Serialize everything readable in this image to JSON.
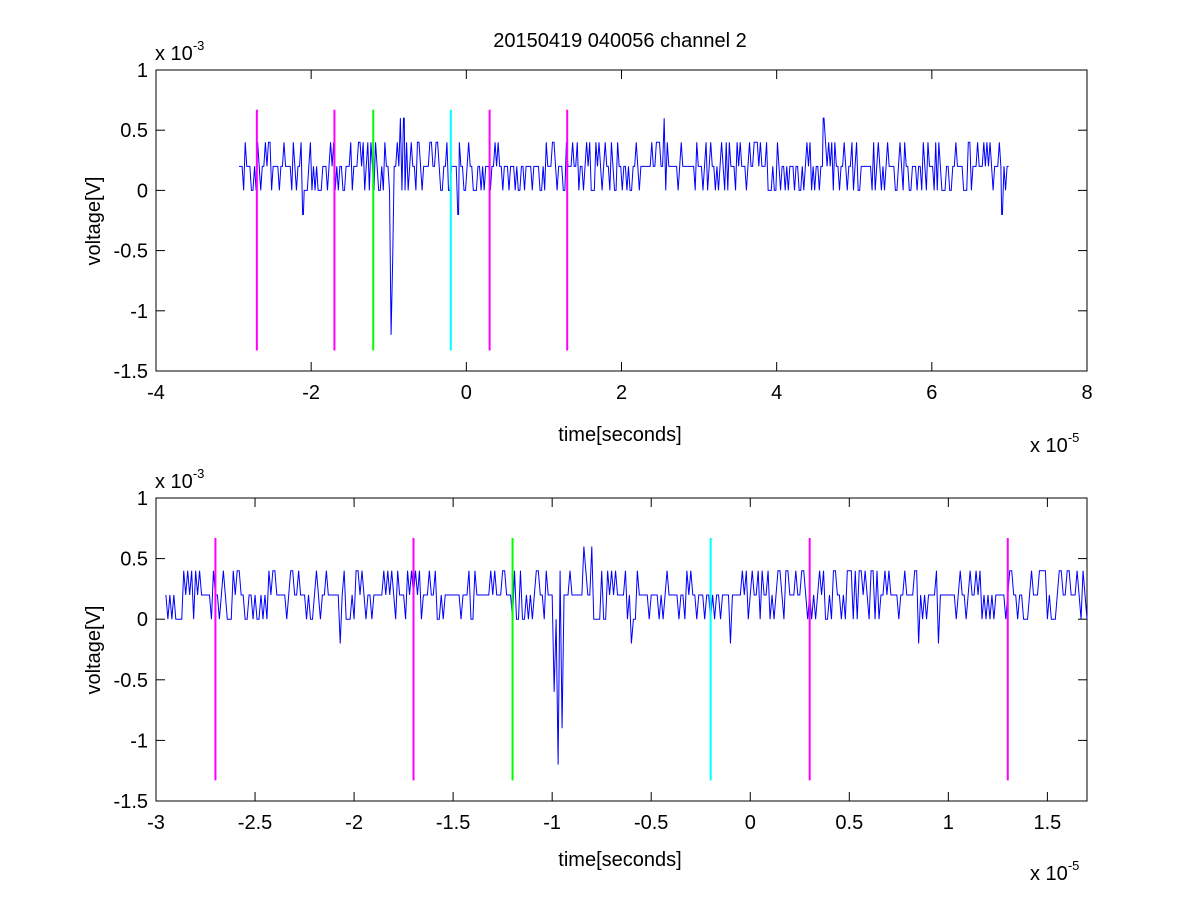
{
  "title": "20150419 040056 channel 2",
  "colors": {
    "signal": "#0000ff",
    "marker_magenta": "#ff00ff",
    "marker_green": "#00ff00",
    "marker_cyan": "#00ffff",
    "axes": "#000000",
    "background": "#ffffff"
  },
  "chart_data": [
    {
      "type": "line",
      "title": "20150419 040056 channel 2",
      "xlabel": "time[seconds]",
      "ylabel": "voltage[V]",
      "x_exponent_label": "x 10",
      "x_exponent": "-5",
      "y_exponent_label": "x 10",
      "y_exponent": "-3",
      "xlim": [
        -4,
        8
      ],
      "ylim": [
        -1.5,
        1
      ],
      "x_ticks": [
        -4,
        -2,
        0,
        2,
        4,
        6,
        8
      ],
      "x_tick_labels": [
        "-4",
        "-2",
        "0",
        "2",
        "4",
        "6",
        "8"
      ],
      "y_ticks": [
        -1.5,
        -1,
        -0.5,
        0,
        0.5,
        1
      ],
      "y_tick_labels": [
        "-1.5",
        "-1",
        "-0.5",
        "0",
        "0.5",
        "1"
      ],
      "grid": false,
      "markers": [
        {
          "x": -2.7,
          "color": "#ff00ff",
          "y": [
            -1.33,
            0.67
          ]
        },
        {
          "x": -1.7,
          "color": "#ff00ff",
          "y": [
            -1.33,
            0.67
          ]
        },
        {
          "x": -1.2,
          "color": "#00ff00",
          "y": [
            -1.33,
            0.67
          ]
        },
        {
          "x": -0.2,
          "color": "#00ffff",
          "y": [
            -1.33,
            0.67
          ]
        },
        {
          "x": 0.3,
          "color": "#ff00ff",
          "y": [
            -1.33,
            0.67
          ]
        },
        {
          "x": 1.3,
          "color": "#ff00ff",
          "y": [
            -1.33,
            0.67
          ]
        }
      ],
      "series": [
        {
          "x_range": [
            -2.93,
            7.0
          ],
          "step": 0.02,
          "baseline": 0.2,
          "levels": [
            0,
            0.2,
            0.4
          ],
          "features": [
            {
              "x": -2.1,
              "y": -0.2
            },
            {
              "x": -0.97,
              "y": -1.2
            },
            {
              "x": -0.85,
              "y": 0.6
            },
            {
              "x": -0.8,
              "y": 0.6
            },
            {
              "x": -0.95,
              "y": -0.6
            },
            {
              "x": -0.1,
              "y": -0.2
            },
            {
              "x": 2.55,
              "y": 0.6
            },
            {
              "x": 4.6,
              "y": 0.6
            },
            {
              "x": 6.9,
              "y": -0.2
            }
          ]
        }
      ]
    },
    {
      "type": "line",
      "xlabel": "time[seconds]",
      "ylabel": "voltage[V]",
      "x_exponent_label": "x 10",
      "x_exponent": "-5",
      "y_exponent_label": "x 10",
      "y_exponent": "-3",
      "xlim": [
        -3.0,
        1.7
      ],
      "ylim": [
        -1.5,
        1
      ],
      "x_ticks": [
        -3,
        -2.5,
        -2,
        -1.5,
        -1,
        -0.5,
        0,
        0.5,
        1,
        1.5
      ],
      "x_tick_labels": [
        "-3",
        "-2.5",
        "-2",
        "-1.5",
        "-1",
        "-0.5",
        "0",
        "0.5",
        "1",
        "1.5"
      ],
      "y_ticks": [
        -1.5,
        -1,
        -0.5,
        0,
        0.5,
        1
      ],
      "y_tick_labels": [
        "-1.5",
        "-1",
        "-0.5",
        "0",
        "0.5",
        "1"
      ],
      "grid": false,
      "markers": [
        {
          "x": -2.7,
          "color": "#ff00ff",
          "y": [
            -1.33,
            0.67
          ]
        },
        {
          "x": -1.7,
          "color": "#ff00ff",
          "y": [
            -1.33,
            0.67
          ]
        },
        {
          "x": -1.2,
          "color": "#00ff00",
          "y": [
            -1.33,
            0.67
          ]
        },
        {
          "x": -0.2,
          "color": "#00ffff",
          "y": [
            -1.33,
            0.67
          ]
        },
        {
          "x": 0.3,
          "color": "#ff00ff",
          "y": [
            -1.33,
            0.67
          ]
        },
        {
          "x": 1.3,
          "color": "#ff00ff",
          "y": [
            -1.33,
            0.67
          ]
        }
      ],
      "series": [
        {
          "x_range": [
            -2.95,
            1.7
          ],
          "step": 0.01,
          "baseline": 0.2,
          "levels": [
            0,
            0.2,
            0.4
          ],
          "features": [
            {
              "x": -2.07,
              "y": -0.2
            },
            {
              "x": -0.97,
              "y": -1.2
            },
            {
              "x": -0.95,
              "y": -0.9
            },
            {
              "x": -0.99,
              "y": -0.6
            },
            {
              "x": -0.84,
              "y": 0.6
            },
            {
              "x": -0.8,
              "y": 0.6
            },
            {
              "x": -0.6,
              "y": -0.2
            },
            {
              "x": -0.1,
              "y": -0.2
            },
            {
              "x": 0.85,
              "y": -0.2
            },
            {
              "x": 0.95,
              "y": -0.2
            },
            {
              "x": 1.65,
              "y": 0.4
            }
          ]
        }
      ]
    }
  ]
}
